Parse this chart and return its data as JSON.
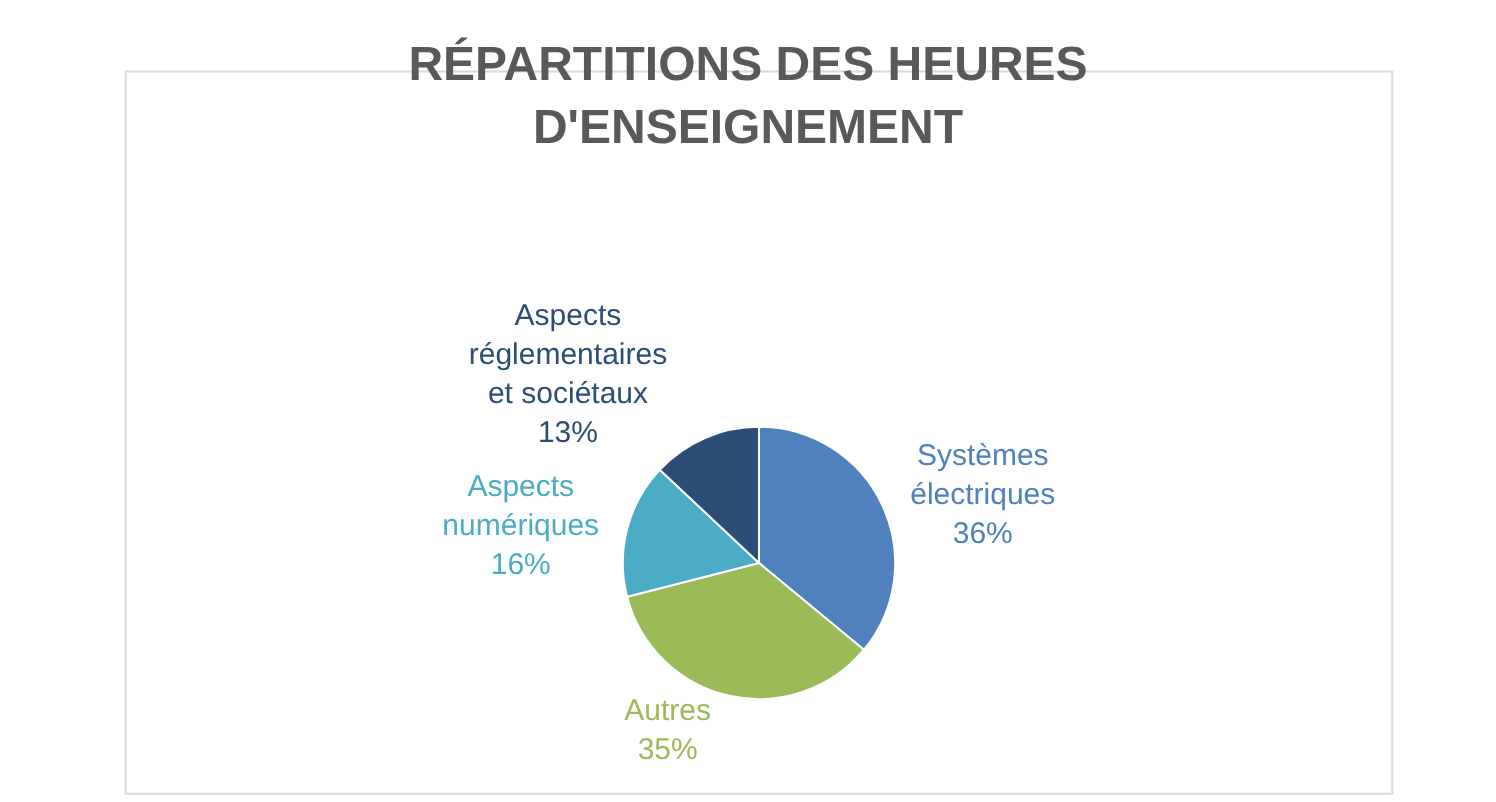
{
  "chart_data": {
    "type": "pie",
    "title": "RÉPARTITIONS DES HEURES D'ENSEIGNEMENT",
    "categories": [
      "Systèmes électriques",
      "Autres",
      "Aspects numériques",
      "Aspects réglementaires et sociétaux"
    ],
    "values": [
      36,
      35,
      16,
      13
    ],
    "value_labels": [
      "36%",
      "35%",
      "16%",
      "13%"
    ],
    "colors": [
      "#4f81bd",
      "#9bbb59",
      "#4bacc6",
      "#2c4d75"
    ],
    "legend": false
  }
}
